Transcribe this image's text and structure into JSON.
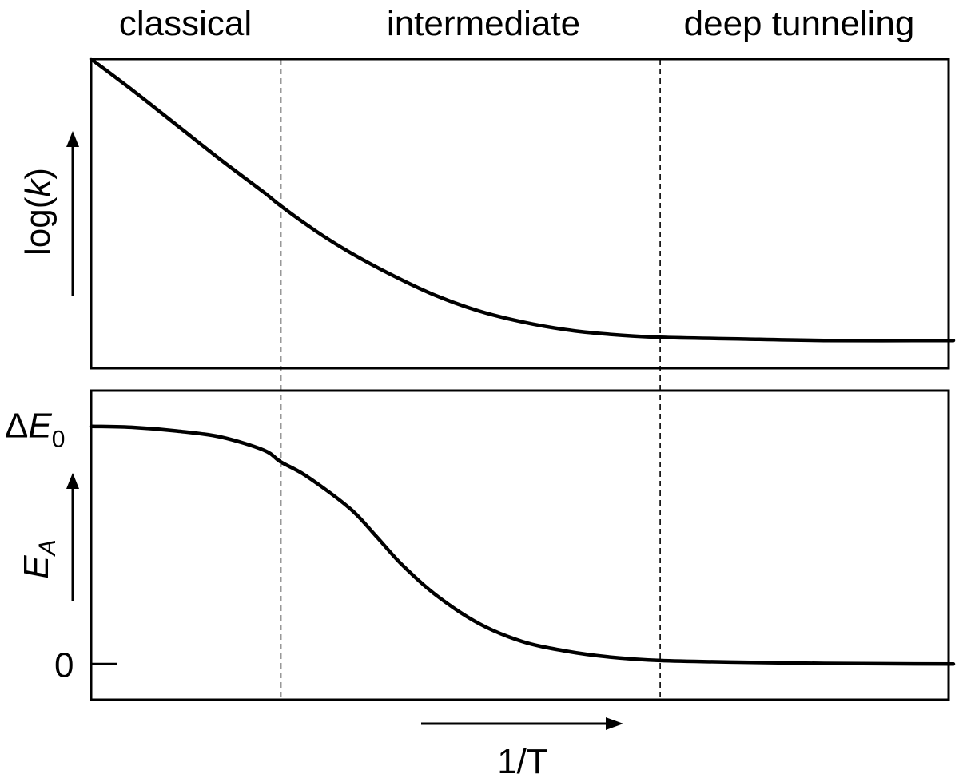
{
  "chart_data": [
    {
      "type": "line",
      "panel": "top",
      "ylabel": "log(k)",
      "ylabel_func": "log(",
      "ylabel_var": "k",
      "ylabel_close": ")",
      "regions": [
        "classical",
        "intermediate",
        "deep tunneling"
      ],
      "region_boundaries": [
        0.22,
        0.66
      ],
      "xlim": [
        0,
        1
      ],
      "ylim": [
        0,
        1
      ],
      "series": [
        {
          "x": [
            0.0,
            0.05,
            0.1,
            0.15,
            0.2,
            0.22,
            0.26,
            0.3,
            0.35,
            0.4,
            0.45,
            0.5,
            0.55,
            0.6,
            0.66,
            0.75,
            0.85,
            1.0
          ],
          "values": [
            1.0,
            0.895,
            0.785,
            0.675,
            0.57,
            0.525,
            0.445,
            0.375,
            0.3,
            0.235,
            0.185,
            0.15,
            0.125,
            0.11,
            0.1,
            0.095,
            0.09,
            0.09
          ]
        }
      ]
    },
    {
      "type": "line",
      "panel": "bottom",
      "ylabel": "E_A",
      "ylabel_main": "E",
      "ylabel_sub": "A",
      "xlabel": "1/T",
      "yticks": [
        {
          "value": 1.0,
          "label": "ΔE_0",
          "prefix": "Δ",
          "main": "E",
          "sub": "0"
        },
        {
          "value": 0.0,
          "label": "0"
        }
      ],
      "region_boundaries": [
        0.22,
        0.66
      ],
      "xlim": [
        0,
        1
      ],
      "ylim": [
        -0.15,
        1.15
      ],
      "series": [
        {
          "x": [
            0.0,
            0.05,
            0.1,
            0.15,
            0.2,
            0.22,
            0.25,
            0.3,
            0.33,
            0.36,
            0.4,
            0.45,
            0.5,
            0.55,
            0.6,
            0.66,
            0.75,
            0.85,
            1.0
          ],
          "values": [
            1.0,
            0.995,
            0.98,
            0.955,
            0.9,
            0.85,
            0.79,
            0.655,
            0.54,
            0.42,
            0.29,
            0.17,
            0.095,
            0.055,
            0.03,
            0.015,
            0.008,
            0.003,
            0.0
          ]
        }
      ]
    }
  ]
}
